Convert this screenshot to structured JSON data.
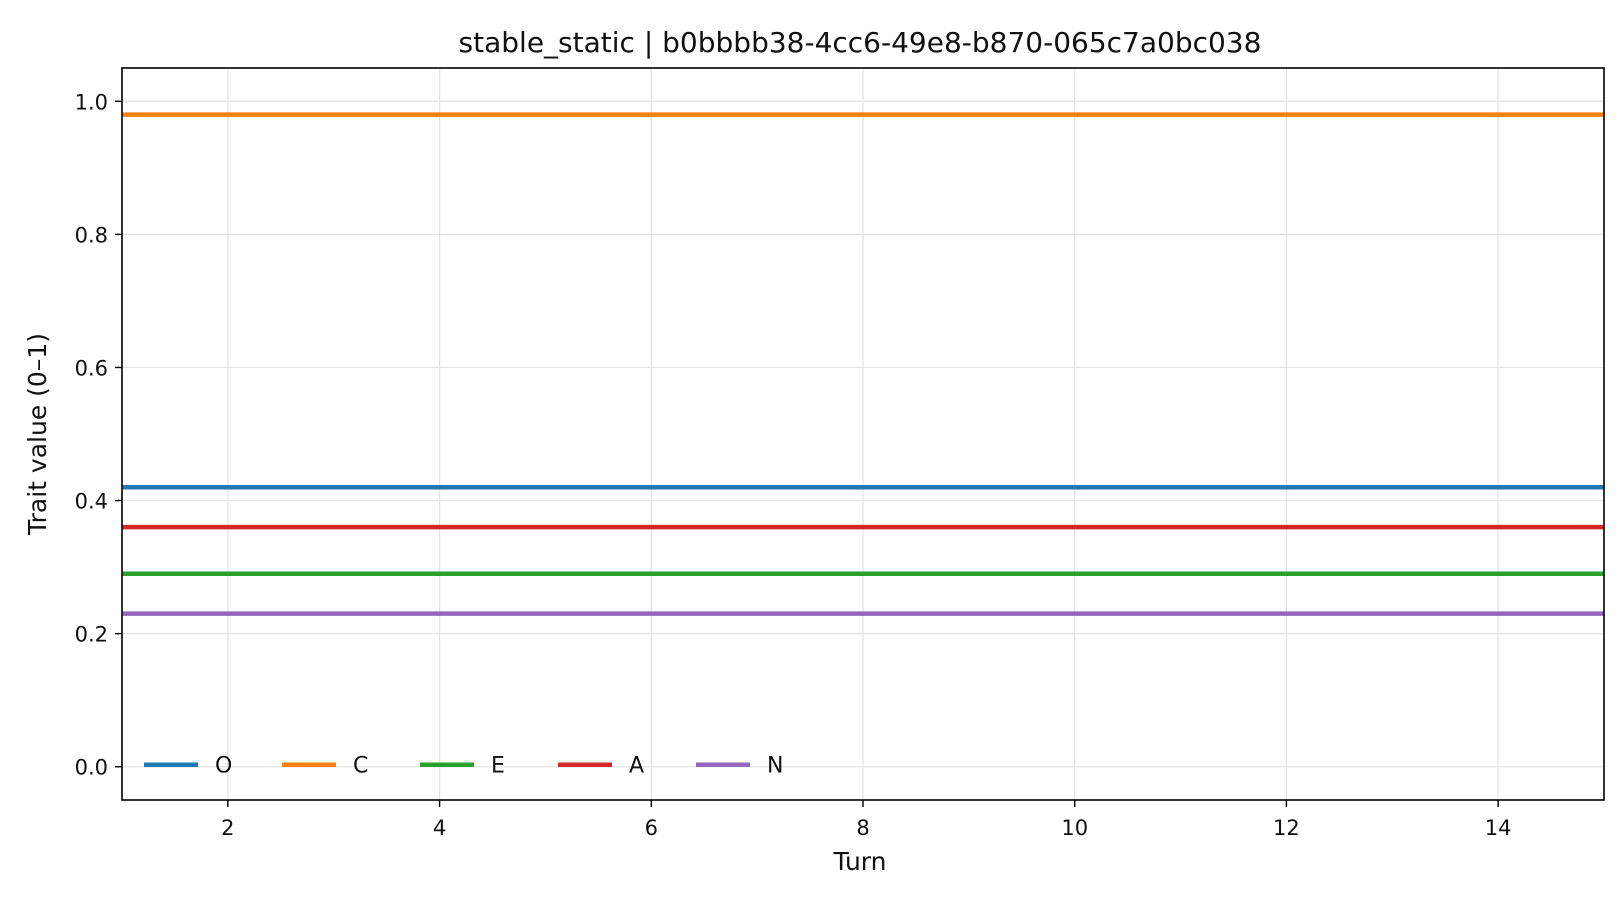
{
  "chart_data": {
    "type": "line",
    "title": "stable_static | b0bbbb38-4cc6-49e8-b870-065c7a0bc038",
    "xlabel": "Turn",
    "ylabel": "Trait value (0–1)",
    "xlim": [
      1,
      15
    ],
    "ylim": [
      -0.05,
      1.05
    ],
    "xticks": [
      2,
      4,
      6,
      8,
      10,
      12,
      14
    ],
    "xtick_labels": [
      "2",
      "4",
      "6",
      "8",
      "10",
      "12",
      "14"
    ],
    "yticks": [
      0.0,
      0.2,
      0.4,
      0.6,
      0.8,
      1.0
    ],
    "ytick_labels": [
      "0.0",
      "0.2",
      "0.4",
      "0.6",
      "0.8",
      "1.0"
    ],
    "grid": true,
    "legend_position": "lower-left",
    "x": [
      1,
      2,
      3,
      4,
      5,
      6,
      7,
      8,
      9,
      10,
      11,
      12,
      13,
      14,
      15
    ],
    "series": [
      {
        "name": "O",
        "color": "#1f77b4",
        "values": [
          0.42,
          0.42,
          0.42,
          0.42,
          0.42,
          0.42,
          0.42,
          0.42,
          0.42,
          0.42,
          0.42,
          0.42,
          0.42,
          0.42,
          0.42
        ]
      },
      {
        "name": "C",
        "color": "#ff7f0e",
        "values": [
          0.98,
          0.98,
          0.98,
          0.98,
          0.98,
          0.98,
          0.98,
          0.98,
          0.98,
          0.98,
          0.98,
          0.98,
          0.98,
          0.98,
          0.98
        ]
      },
      {
        "name": "E",
        "color": "#2ca02c",
        "values": [
          0.29,
          0.29,
          0.29,
          0.29,
          0.29,
          0.29,
          0.29,
          0.29,
          0.29,
          0.29,
          0.29,
          0.29,
          0.29,
          0.29,
          0.29
        ]
      },
      {
        "name": "A",
        "color": "#d62728",
        "values": [
          0.36,
          0.36,
          0.36,
          0.36,
          0.36,
          0.36,
          0.36,
          0.36,
          0.36,
          0.36,
          0.36,
          0.36,
          0.36,
          0.36,
          0.36
        ]
      },
      {
        "name": "N",
        "color": "#9467bd",
        "values": [
          0.23,
          0.23,
          0.23,
          0.23,
          0.23,
          0.23,
          0.23,
          0.23,
          0.23,
          0.23,
          0.23,
          0.23,
          0.23,
          0.23,
          0.23
        ]
      }
    ]
  }
}
